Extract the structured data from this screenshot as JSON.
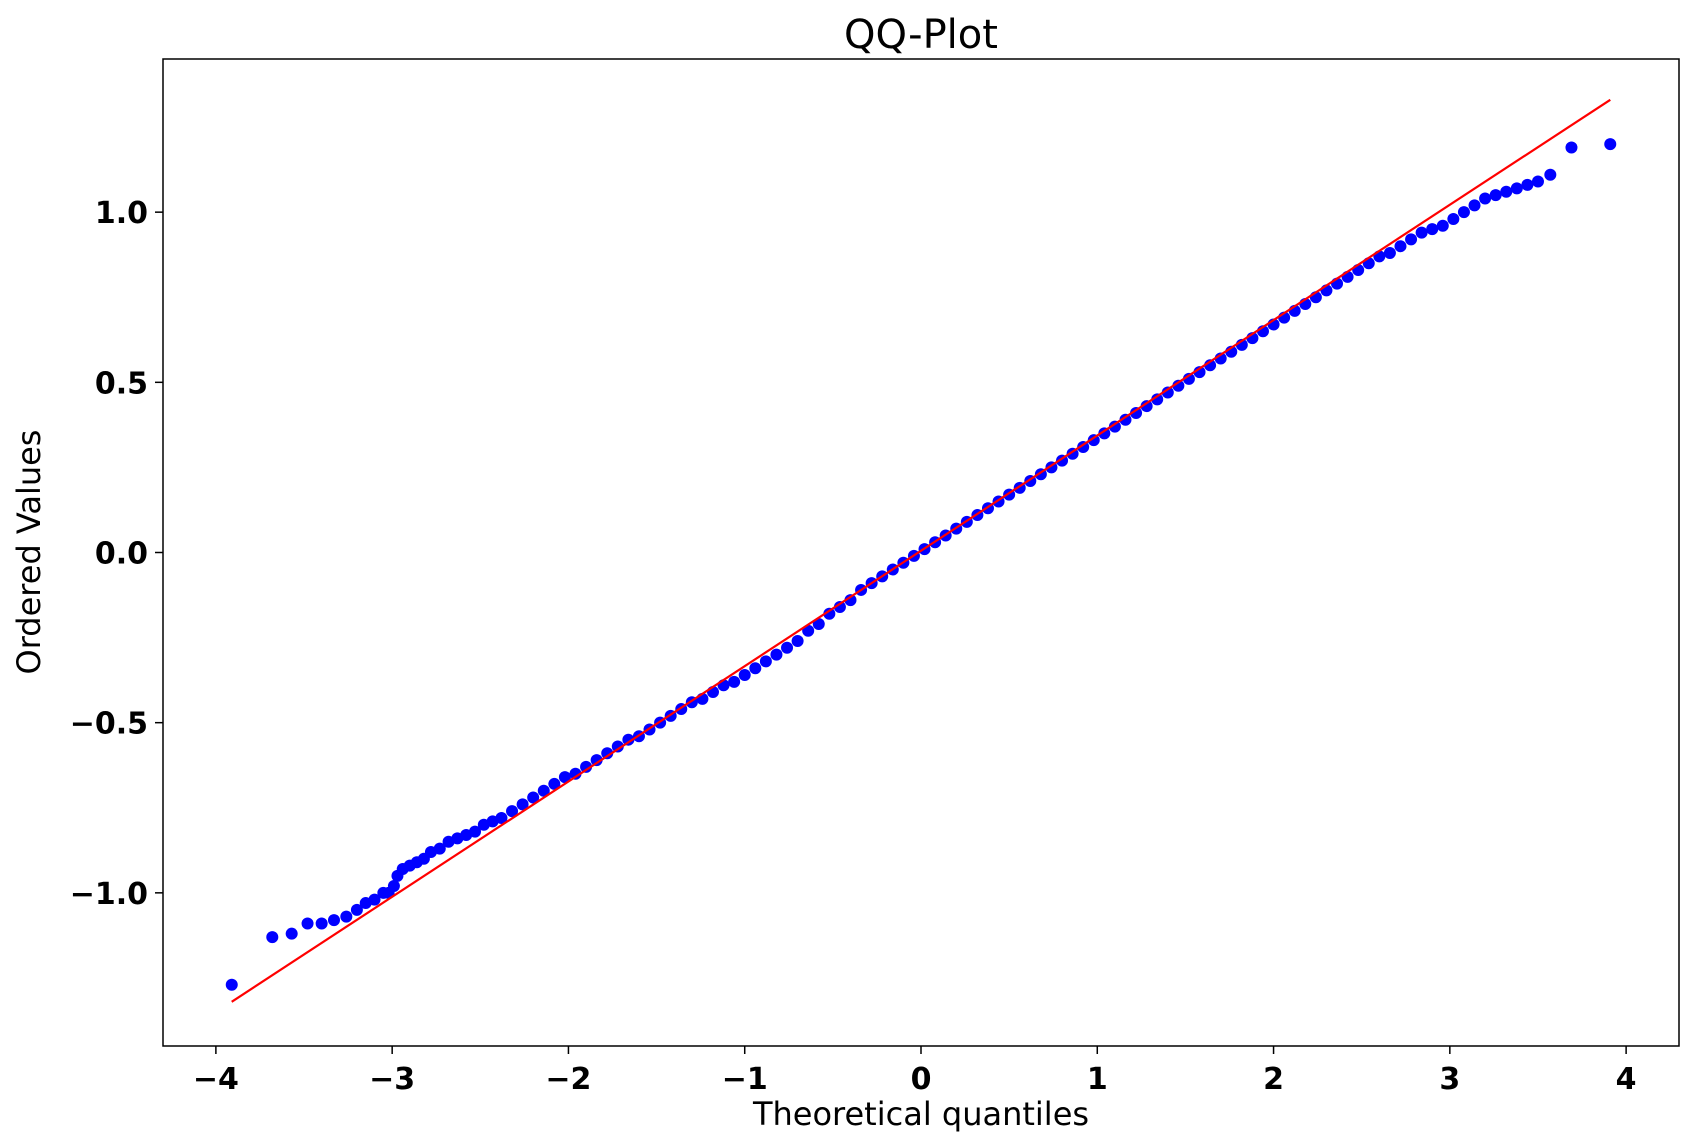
{
  "chart_data": {
    "type": "scatter",
    "title": "QQ-Plot",
    "xlabel": "Theoretical quantiles",
    "ylabel": "Ordered Values",
    "xlim": [
      -4.3,
      4.3
    ],
    "ylim": [
      -1.45,
      1.45
    ],
    "x_ticks": [
      -4,
      -3,
      -2,
      -1,
      0,
      1,
      2,
      3,
      4
    ],
    "x_tick_labels": [
      "−4",
      "−3",
      "−2",
      "−1",
      "0",
      "1",
      "2",
      "3",
      "4"
    ],
    "y_ticks": [
      -1.0,
      -0.5,
      0.0,
      0.5,
      1.0
    ],
    "y_tick_labels": [
      "−1.0",
      "−0.5",
      "0.0",
      "0.5",
      "1.0"
    ],
    "grid": false,
    "legend": "none",
    "series": [
      {
        "kind": "points",
        "color": "#0000ff",
        "points": [
          [
            -3.91,
            -1.27
          ],
          [
            -3.68,
            -1.13
          ],
          [
            -3.57,
            -1.12
          ],
          [
            -3.48,
            -1.09
          ],
          [
            -3.4,
            -1.09
          ],
          [
            -3.33,
            -1.08
          ],
          [
            -3.26,
            -1.07
          ],
          [
            -3.2,
            -1.05
          ],
          [
            -3.15,
            -1.03
          ],
          [
            -3.1,
            -1.02
          ],
          [
            -3.05,
            -1.0
          ],
          [
            -3.02,
            -1.0
          ],
          [
            -2.99,
            -0.98
          ],
          [
            -2.97,
            -0.95
          ],
          [
            -2.94,
            -0.93
          ],
          [
            -2.9,
            -0.92
          ],
          [
            -2.86,
            -0.91
          ],
          [
            -2.82,
            -0.9
          ],
          [
            -2.78,
            -0.88
          ],
          [
            -2.73,
            -0.87
          ],
          [
            -2.68,
            -0.85
          ],
          [
            -2.63,
            -0.84
          ],
          [
            -2.58,
            -0.83
          ],
          [
            -2.53,
            -0.82
          ],
          [
            -2.48,
            -0.8
          ],
          [
            -2.43,
            -0.79
          ],
          [
            -2.38,
            -0.78
          ],
          [
            -2.32,
            -0.76
          ],
          [
            -2.26,
            -0.74
          ],
          [
            -2.2,
            -0.72
          ],
          [
            -2.14,
            -0.7
          ],
          [
            -2.08,
            -0.68
          ],
          [
            -2.02,
            -0.66
          ],
          [
            -1.96,
            -0.65
          ],
          [
            -1.9,
            -0.63
          ],
          [
            -1.84,
            -0.61
          ],
          [
            -1.78,
            -0.59
          ],
          [
            -1.72,
            -0.57
          ],
          [
            -1.66,
            -0.55
          ],
          [
            -1.6,
            -0.54
          ],
          [
            -1.54,
            -0.52
          ],
          [
            -1.48,
            -0.5
          ],
          [
            -1.42,
            -0.48
          ],
          [
            -1.36,
            -0.46
          ],
          [
            -1.3,
            -0.44
          ],
          [
            -1.24,
            -0.43
          ],
          [
            -1.18,
            -0.41
          ],
          [
            -1.12,
            -0.39
          ],
          [
            -1.06,
            -0.38
          ],
          [
            -1.0,
            -0.36
          ],
          [
            -0.94,
            -0.34
          ],
          [
            -0.88,
            -0.32
          ],
          [
            -0.82,
            -0.3
          ],
          [
            -0.76,
            -0.28
          ],
          [
            -0.7,
            -0.26
          ],
          [
            -0.64,
            -0.23
          ],
          [
            -0.58,
            -0.21
          ],
          [
            -0.52,
            -0.18
          ],
          [
            -0.46,
            -0.16
          ],
          [
            -0.4,
            -0.14
          ],
          [
            -0.34,
            -0.11
          ],
          [
            -0.28,
            -0.09
          ],
          [
            -0.22,
            -0.07
          ],
          [
            -0.16,
            -0.05
          ],
          [
            -0.1,
            -0.03
          ],
          [
            -0.04,
            -0.01
          ],
          [
            0.02,
            0.01
          ],
          [
            0.08,
            0.03
          ],
          [
            0.14,
            0.05
          ],
          [
            0.2,
            0.07
          ],
          [
            0.26,
            0.09
          ],
          [
            0.32,
            0.11
          ],
          [
            0.38,
            0.13
          ],
          [
            0.44,
            0.15
          ],
          [
            0.5,
            0.17
          ],
          [
            0.56,
            0.19
          ],
          [
            0.62,
            0.21
          ],
          [
            0.68,
            0.23
          ],
          [
            0.74,
            0.25
          ],
          [
            0.8,
            0.27
          ],
          [
            0.86,
            0.29
          ],
          [
            0.92,
            0.31
          ],
          [
            0.98,
            0.33
          ],
          [
            1.04,
            0.35
          ],
          [
            1.1,
            0.37
          ],
          [
            1.16,
            0.39
          ],
          [
            1.22,
            0.41
          ],
          [
            1.28,
            0.43
          ],
          [
            1.34,
            0.45
          ],
          [
            1.4,
            0.47
          ],
          [
            1.46,
            0.49
          ],
          [
            1.52,
            0.51
          ],
          [
            1.58,
            0.53
          ],
          [
            1.64,
            0.55
          ],
          [
            1.7,
            0.57
          ],
          [
            1.76,
            0.59
          ],
          [
            1.82,
            0.61
          ],
          [
            1.88,
            0.63
          ],
          [
            1.94,
            0.65
          ],
          [
            2.0,
            0.67
          ],
          [
            2.06,
            0.69
          ],
          [
            2.12,
            0.71
          ],
          [
            2.18,
            0.73
          ],
          [
            2.24,
            0.75
          ],
          [
            2.3,
            0.77
          ],
          [
            2.36,
            0.79
          ],
          [
            2.42,
            0.81
          ],
          [
            2.48,
            0.83
          ],
          [
            2.54,
            0.85
          ],
          [
            2.6,
            0.87
          ],
          [
            2.66,
            0.88
          ],
          [
            2.72,
            0.9
          ],
          [
            2.78,
            0.92
          ],
          [
            2.84,
            0.94
          ],
          [
            2.9,
            0.95
          ],
          [
            2.96,
            0.96
          ],
          [
            3.02,
            0.98
          ],
          [
            3.08,
            1.0
          ],
          [
            3.14,
            1.02
          ],
          [
            3.2,
            1.04
          ],
          [
            3.26,
            1.05
          ],
          [
            3.32,
            1.06
          ],
          [
            3.38,
            1.07
          ],
          [
            3.44,
            1.08
          ],
          [
            3.5,
            1.09
          ],
          [
            3.57,
            1.11
          ],
          [
            3.69,
            1.19
          ],
          [
            3.91,
            1.2
          ]
        ]
      },
      {
        "kind": "line",
        "color": "#ff0000",
        "points": [
          [
            -3.91,
            -1.32
          ],
          [
            3.91,
            1.33
          ]
        ]
      }
    ]
  }
}
